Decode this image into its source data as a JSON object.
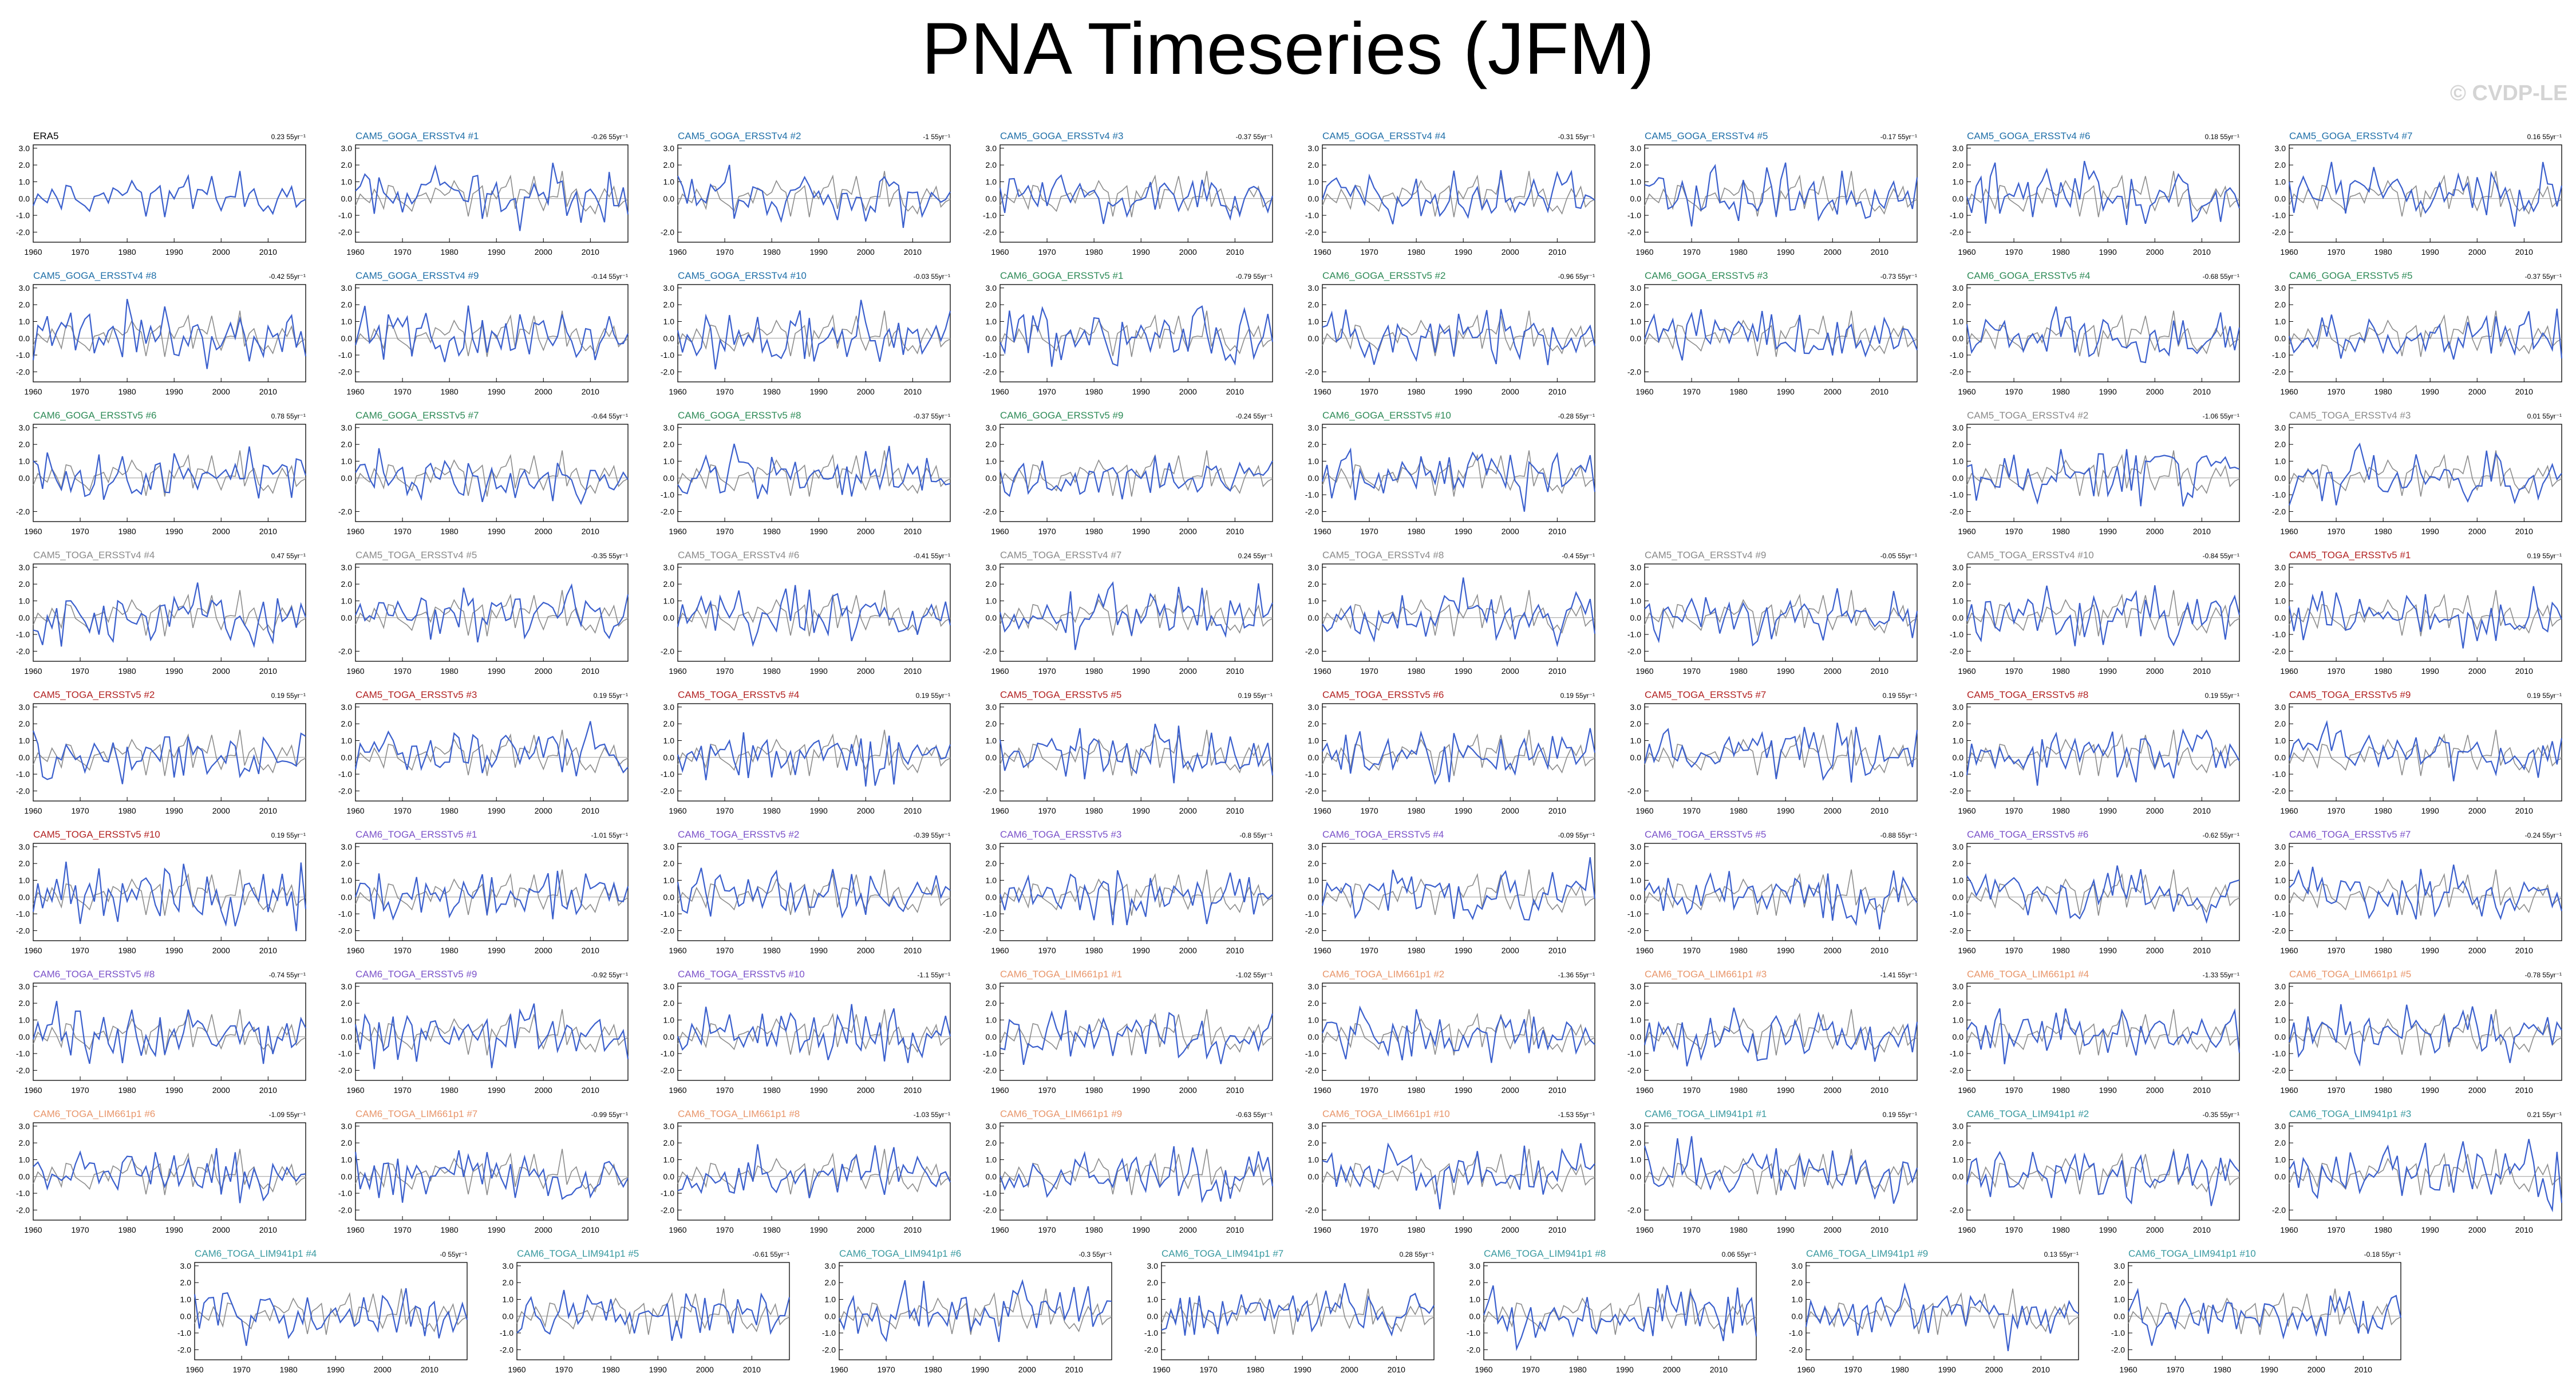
{
  "title": "PNA Timeseries (JFM)",
  "watermark": "© CVDP-LE",
  "colors": {
    "sim_line": "#3a5fcd",
    "obs_line": "#8c8c8c",
    "zero_line": "#9a9a9a",
    "ERA5": "#000000",
    "CAM5_GOGA_ERSSTv4": "#1f6fa8",
    "CAM6_GOGA_ERSSTv5": "#2e8b57",
    "CAM5_TOGA_ERSSTv4": "#8a8a8a",
    "CAM5_TOGA_ERSSTv5": "#b22222",
    "CAM6_TOGA_ERSSTv5": "#7b52c9",
    "CAM6_TOGA_LIM661p1": "#e8966b",
    "CAM6_TOGA_LIM941p1": "#3a9aa0"
  },
  "chart_data": {
    "type": "line",
    "x_range": [
      1960,
      2018
    ],
    "x_ticks": [
      "1960",
      "1970",
      "1980",
      "1990",
      "2000",
      "2010"
    ],
    "ylim": [
      -2.6,
      3.2
    ],
    "y_ticks": [
      "3.0",
      "2.0",
      "1.0",
      "0.0",
      "-1.0",
      "-2.0"
    ],
    "y_ticks_sparse": [
      "3.0",
      "2.0",
      "1.0",
      "0.0",
      "-2.0"
    ],
    "sparse_panels": [
      2,
      12,
      13,
      16,
      17,
      19,
      24,
      25,
      26,
      27,
      34,
      36,
      59,
      60,
      61,
      62
    ],
    "panels": [
      {
        "group": "ERA5",
        "title": "ERA5",
        "trend": "0.23 55yr⁻¹",
        "slot": [
          0,
          0
        ]
      },
      {
        "group": "CAM5_GOGA_ERSSTv4",
        "title": "CAM5_GOGA_ERSSTv4 #1",
        "trend": "-0.26 55yr⁻¹",
        "slot": [
          0,
          1
        ]
      },
      {
        "group": "CAM5_GOGA_ERSSTv4",
        "title": "CAM5_GOGA_ERSSTv4 #2",
        "trend": "-1 55yr⁻¹",
        "slot": [
          0,
          2
        ]
      },
      {
        "group": "CAM5_GOGA_ERSSTv4",
        "title": "CAM5_GOGA_ERSSTv4 #3",
        "trend": "-0.37 55yr⁻¹",
        "slot": [
          0,
          3
        ]
      },
      {
        "group": "CAM5_GOGA_ERSSTv4",
        "title": "CAM5_GOGA_ERSSTv4 #4",
        "trend": "-0.31 55yr⁻¹",
        "slot": [
          0,
          4
        ]
      },
      {
        "group": "CAM5_GOGA_ERSSTv4",
        "title": "CAM5_GOGA_ERSSTv4 #5",
        "trend": "-0.17 55yr⁻¹",
        "slot": [
          0,
          5
        ]
      },
      {
        "group": "CAM5_GOGA_ERSSTv4",
        "title": "CAM5_GOGA_ERSSTv4 #6",
        "trend": "0.18 55yr⁻¹",
        "slot": [
          0,
          6
        ]
      },
      {
        "group": "CAM5_GOGA_ERSSTv4",
        "title": "CAM5_GOGA_ERSSTv4 #7",
        "trend": "0.16 55yr⁻¹",
        "slot": [
          0,
          7
        ]
      },
      {
        "group": "CAM5_GOGA_ERSSTv4",
        "title": "CAM5_GOGA_ERSSTv4 #8",
        "trend": "-0.42 55yr⁻¹",
        "slot": [
          1,
          0
        ]
      },
      {
        "group": "CAM5_GOGA_ERSSTv4",
        "title": "CAM5_GOGA_ERSSTv4 #9",
        "trend": "-0.14 55yr⁻¹",
        "slot": [
          1,
          1
        ]
      },
      {
        "group": "CAM5_GOGA_ERSSTv4",
        "title": "CAM5_GOGA_ERSSTv4 #10",
        "trend": "-0.03 55yr⁻¹",
        "slot": [
          1,
          2
        ]
      },
      {
        "group": "CAM6_GOGA_ERSSTv5",
        "title": "CAM6_GOGA_ERSSTv5 #1",
        "trend": "-0.79 55yr⁻¹",
        "slot": [
          1,
          3
        ]
      },
      {
        "group": "CAM6_GOGA_ERSSTv5",
        "title": "CAM6_GOGA_ERSSTv5 #2",
        "trend": "-0.96 55yr⁻¹",
        "slot": [
          1,
          4
        ]
      },
      {
        "group": "CAM6_GOGA_ERSSTv5",
        "title": "CAM6_GOGA_ERSSTv5 #3",
        "trend": "-0.73 55yr⁻¹",
        "slot": [
          1,
          5
        ]
      },
      {
        "group": "CAM6_GOGA_ERSSTv5",
        "title": "CAM6_GOGA_ERSSTv5 #4",
        "trend": "-0.68 55yr⁻¹",
        "slot": [
          1,
          6
        ]
      },
      {
        "group": "CAM6_GOGA_ERSSTv5",
        "title": "CAM6_GOGA_ERSSTv5 #5",
        "trend": "-0.37 55yr⁻¹",
        "slot": [
          1,
          7
        ]
      },
      {
        "group": "CAM6_GOGA_ERSSTv5",
        "title": "CAM6_GOGA_ERSSTv5 #6",
        "trend": "0.78 55yr⁻¹",
        "slot": [
          2,
          0
        ]
      },
      {
        "group": "CAM6_GOGA_ERSSTv5",
        "title": "CAM6_GOGA_ERSSTv5 #7",
        "trend": "-0.64 55yr⁻¹",
        "slot": [
          2,
          1
        ]
      },
      {
        "group": "CAM6_GOGA_ERSSTv5",
        "title": "CAM6_GOGA_ERSSTv5 #8",
        "trend": "-0.37 55yr⁻¹",
        "slot": [
          2,
          2
        ]
      },
      {
        "group": "CAM6_GOGA_ERSSTv5",
        "title": "CAM6_GOGA_ERSSTv5 #9",
        "trend": "-0.24 55yr⁻¹",
        "slot": [
          2,
          3
        ]
      },
      {
        "group": "CAM6_GOGA_ERSSTv5",
        "title": "CAM6_GOGA_ERSSTv5 #10",
        "trend": "-0.28 55yr⁻¹",
        "slot": [
          2,
          4
        ]
      },
      {
        "group": "CAM5_TOGA_ERSSTv4",
        "title": "CAM5_TOGA_ERSSTv4 #2",
        "trend": "-1.06 55yr⁻¹",
        "slot": [
          2,
          6
        ]
      },
      {
        "group": "CAM5_TOGA_ERSSTv4",
        "title": "CAM5_TOGA_ERSSTv4 #3",
        "trend": "0.01 55yr⁻¹",
        "slot": [
          2,
          7
        ]
      },
      {
        "group": "CAM5_TOGA_ERSSTv4",
        "title": "CAM5_TOGA_ERSSTv4 #4",
        "trend": "0.47 55yr⁻¹",
        "slot": [
          3,
          0
        ]
      },
      {
        "group": "CAM5_TOGA_ERSSTv4",
        "title": "CAM5_TOGA_ERSSTv4 #5",
        "trend": "-0.35 55yr⁻¹",
        "slot": [
          3,
          1
        ]
      },
      {
        "group": "CAM5_TOGA_ERSSTv4",
        "title": "CAM5_TOGA_ERSSTv4 #6",
        "trend": "-0.41 55yr⁻¹",
        "slot": [
          3,
          2
        ]
      },
      {
        "group": "CAM5_TOGA_ERSSTv4",
        "title": "CAM5_TOGA_ERSSTv4 #7",
        "trend": "0.24 55yr⁻¹",
        "slot": [
          3,
          3
        ]
      },
      {
        "group": "CAM5_TOGA_ERSSTv4",
        "title": "CAM5_TOGA_ERSSTv4 #8",
        "trend": "-0.4 55yr⁻¹",
        "slot": [
          3,
          4
        ]
      },
      {
        "group": "CAM5_TOGA_ERSSTv4",
        "title": "CAM5_TOGA_ERSSTv4 #9",
        "trend": "-0.05 55yr⁻¹",
        "slot": [
          3,
          5
        ]
      },
      {
        "group": "CAM5_TOGA_ERSSTv4",
        "title": "CAM5_TOGA_ERSSTv4 #10",
        "trend": "-0.84 55yr⁻¹",
        "slot": [
          3,
          6
        ]
      },
      {
        "group": "CAM5_TOGA_ERSSTv5",
        "title": "CAM5_TOGA_ERSSTv5 #1",
        "trend": "0.19 55yr⁻¹",
        "slot": [
          3,
          7
        ]
      },
      {
        "group": "CAM5_TOGA_ERSSTv5",
        "title": "CAM5_TOGA_ERSSTv5 #2",
        "trend": "0.19 55yr⁻¹",
        "slot": [
          4,
          0
        ]
      },
      {
        "group": "CAM5_TOGA_ERSSTv5",
        "title": "CAM5_TOGA_ERSSTv5 #3",
        "trend": "0.19 55yr⁻¹",
        "slot": [
          4,
          1
        ]
      },
      {
        "group": "CAM5_TOGA_ERSSTv5",
        "title": "CAM5_TOGA_ERSSTv5 #4",
        "trend": "0.19 55yr⁻¹",
        "slot": [
          4,
          2
        ]
      },
      {
        "group": "CAM5_TOGA_ERSSTv5",
        "title": "CAM5_TOGA_ERSSTv5 #5",
        "trend": "0.19 55yr⁻¹",
        "slot": [
          4,
          3
        ]
      },
      {
        "group": "CAM5_TOGA_ERSSTv5",
        "title": "CAM5_TOGA_ERSSTv5 #6",
        "trend": "0.19 55yr⁻¹",
        "slot": [
          4,
          4
        ]
      },
      {
        "group": "CAM5_TOGA_ERSSTv5",
        "title": "CAM5_TOGA_ERSSTv5 #7",
        "trend": "0.19 55yr⁻¹",
        "slot": [
          4,
          5
        ]
      },
      {
        "group": "CAM5_TOGA_ERSSTv5",
        "title": "CAM5_TOGA_ERSSTv5 #8",
        "trend": "0.19 55yr⁻¹",
        "slot": [
          4,
          6
        ]
      },
      {
        "group": "CAM5_TOGA_ERSSTv5",
        "title": "CAM5_TOGA_ERSSTv5 #9",
        "trend": "0.19 55yr⁻¹",
        "slot": [
          4,
          7
        ]
      },
      {
        "group": "CAM5_TOGA_ERSSTv5",
        "title": "CAM5_TOGA_ERSSTv5 #10",
        "trend": "0.19 55yr⁻¹",
        "slot": [
          5,
          0
        ]
      },
      {
        "group": "CAM6_TOGA_ERSSTv5",
        "title": "CAM6_TOGA_ERSSTv5 #1",
        "trend": "-1.01 55yr⁻¹",
        "slot": [
          5,
          1
        ]
      },
      {
        "group": "CAM6_TOGA_ERSSTv5",
        "title": "CAM6_TOGA_ERSSTv5 #2",
        "trend": "-0.39 55yr⁻¹",
        "slot": [
          5,
          2
        ]
      },
      {
        "group": "CAM6_TOGA_ERSSTv5",
        "title": "CAM6_TOGA_ERSSTv5 #3",
        "trend": "-0.8 55yr⁻¹",
        "slot": [
          5,
          3
        ]
      },
      {
        "group": "CAM6_TOGA_ERSSTv5",
        "title": "CAM6_TOGA_ERSSTv5 #4",
        "trend": "-0.09 55yr⁻¹",
        "slot": [
          5,
          4
        ]
      },
      {
        "group": "CAM6_TOGA_ERSSTv5",
        "title": "CAM6_TOGA_ERSSTv5 #5",
        "trend": "-0.88 55yr⁻¹",
        "slot": [
          5,
          5
        ]
      },
      {
        "group": "CAM6_TOGA_ERSSTv5",
        "title": "CAM6_TOGA_ERSSTv5 #6",
        "trend": "-0.62 55yr⁻¹",
        "slot": [
          5,
          6
        ]
      },
      {
        "group": "CAM6_TOGA_ERSSTv5",
        "title": "CAM6_TOGA_ERSSTv5 #7",
        "trend": "-0.24 55yr⁻¹",
        "slot": [
          5,
          7
        ]
      },
      {
        "group": "CAM6_TOGA_ERSSTv5",
        "title": "CAM6_TOGA_ERSSTv5 #8",
        "trend": "-0.74 55yr⁻¹",
        "slot": [
          6,
          0
        ]
      },
      {
        "group": "CAM6_TOGA_ERSSTv5",
        "title": "CAM6_TOGA_ERSSTv5 #9",
        "trend": "-0.92 55yr⁻¹",
        "slot": [
          6,
          1
        ]
      },
      {
        "group": "CAM6_TOGA_ERSSTv5",
        "title": "CAM6_TOGA_ERSSTv5 #10",
        "trend": "-1.1 55yr⁻¹",
        "slot": [
          6,
          2
        ]
      },
      {
        "group": "CAM6_TOGA_LIM661p1",
        "title": "CAM6_TOGA_LIM661p1 #1",
        "trend": "-1.02 55yr⁻¹",
        "slot": [
          6,
          3
        ]
      },
      {
        "group": "CAM6_TOGA_LIM661p1",
        "title": "CAM6_TOGA_LIM661p1 #2",
        "trend": "-1.36 55yr⁻¹",
        "slot": [
          6,
          4
        ]
      },
      {
        "group": "CAM6_TOGA_LIM661p1",
        "title": "CAM6_TOGA_LIM661p1 #3",
        "trend": "-1.41 55yr⁻¹",
        "slot": [
          6,
          5
        ]
      },
      {
        "group": "CAM6_TOGA_LIM661p1",
        "title": "CAM6_TOGA_LIM661p1 #4",
        "trend": "-1.33 55yr⁻¹",
        "slot": [
          6,
          6
        ]
      },
      {
        "group": "CAM6_TOGA_LIM661p1",
        "title": "CAM6_TOGA_LIM661p1 #5",
        "trend": "-0.78 55yr⁻¹",
        "slot": [
          6,
          7
        ]
      },
      {
        "group": "CAM6_TOGA_LIM661p1",
        "title": "CAM6_TOGA_LIM661p1 #6",
        "trend": "-1.09 55yr⁻¹",
        "slot": [
          7,
          0
        ]
      },
      {
        "group": "CAM6_TOGA_LIM661p1",
        "title": "CAM6_TOGA_LIM661p1 #7",
        "trend": "-0.99 55yr⁻¹",
        "slot": [
          7,
          1
        ]
      },
      {
        "group": "CAM6_TOGA_LIM661p1",
        "title": "CAM6_TOGA_LIM661p1 #8",
        "trend": "-1.03 55yr⁻¹",
        "slot": [
          7,
          2
        ]
      },
      {
        "group": "CAM6_TOGA_LIM661p1",
        "title": "CAM6_TOGA_LIM661p1 #9",
        "trend": "-0.63 55yr⁻¹",
        "slot": [
          7,
          3
        ]
      },
      {
        "group": "CAM6_TOGA_LIM661p1",
        "title": "CAM6_TOGA_LIM661p1 #10",
        "trend": "-1.53 55yr⁻¹",
        "slot": [
          7,
          4
        ]
      },
      {
        "group": "CAM6_TOGA_LIM941p1",
        "title": "CAM6_TOGA_LIM941p1 #1",
        "trend": "0.19 55yr⁻¹",
        "slot": [
          7,
          5
        ]
      },
      {
        "group": "CAM6_TOGA_LIM941p1",
        "title": "CAM6_TOGA_LIM941p1 #2",
        "trend": "-0.35 55yr⁻¹",
        "slot": [
          7,
          6
        ]
      },
      {
        "group": "CAM6_TOGA_LIM941p1",
        "title": "CAM6_TOGA_LIM941p1 #3",
        "trend": "0.21 55yr⁻¹",
        "slot": [
          7,
          7
        ]
      },
      {
        "group": "CAM6_TOGA_LIM941p1",
        "title": "CAM6_TOGA_LIM941p1 #4",
        "trend": "-0 55yr⁻¹",
        "slot": [
          8,
          0
        ]
      },
      {
        "group": "CAM6_TOGA_LIM941p1",
        "title": "CAM6_TOGA_LIM941p1 #5",
        "trend": "-0.61 55yr⁻¹",
        "slot": [
          8,
          1
        ]
      },
      {
        "group": "CAM6_TOGA_LIM941p1",
        "title": "CAM6_TOGA_LIM941p1 #6",
        "trend": "-0.3 55yr⁻¹",
        "slot": [
          8,
          2
        ]
      },
      {
        "group": "CAM6_TOGA_LIM941p1",
        "title": "CAM6_TOGA_LIM941p1 #7",
        "trend": "0.28 55yr⁻¹",
        "slot": [
          8,
          3
        ]
      },
      {
        "group": "CAM6_TOGA_LIM941p1",
        "title": "CAM6_TOGA_LIM941p1 #8",
        "trend": "0.06 55yr⁻¹",
        "slot": [
          8,
          4
        ]
      },
      {
        "group": "CAM6_TOGA_LIM941p1",
        "title": "CAM6_TOGA_LIM941p1 #9",
        "trend": "0.13 55yr⁻¹",
        "slot": [
          8,
          5
        ]
      },
      {
        "group": "CAM6_TOGA_LIM941p1",
        "title": "CAM6_TOGA_LIM941p1 #10",
        "trend": "-0.18 55yr⁻¹",
        "slot": [
          8,
          6
        ]
      }
    ]
  }
}
